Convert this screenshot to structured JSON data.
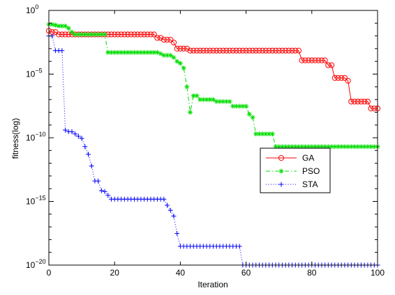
{
  "chart_data": {
    "type": "line",
    "xlabel": "Iteration",
    "ylabel": "fitness(log)",
    "xlim": [
      0,
      100
    ],
    "ylim": [
      1e-20,
      1
    ],
    "yscale": "log",
    "grid": false,
    "legend_position": "inside-right",
    "x_ticks": [
      {
        "value": 0,
        "label": "0"
      },
      {
        "value": 20,
        "label": "20"
      },
      {
        "value": 40,
        "label": "40"
      },
      {
        "value": 60,
        "label": "60"
      },
      {
        "value": 80,
        "label": "80"
      },
      {
        "value": 100,
        "label": "100"
      }
    ],
    "y_ticks": [
      {
        "value": 1,
        "base": "10",
        "exp": "0"
      },
      {
        "value": 1e-05,
        "base": "10",
        "exp": "−5"
      },
      {
        "value": 1e-10,
        "base": "10",
        "exp": "−10"
      },
      {
        "value": 1e-15,
        "base": "10",
        "exp": "−15"
      },
      {
        "value": 1e-20,
        "base": "10",
        "exp": "−20"
      }
    ],
    "series": [
      {
        "name": "GA",
        "color": "#ff0000",
        "marker": "circle",
        "line": "solid",
        "points": [
          [
            0,
            0.025
          ],
          [
            1,
            0.02
          ],
          [
            2,
            0.02
          ],
          [
            3,
            0.013
          ],
          [
            4,
            0.013
          ],
          [
            5,
            0.013
          ],
          [
            6,
            0.013
          ],
          [
            7,
            0.013
          ],
          [
            8,
            0.013
          ],
          [
            9,
            0.013
          ],
          [
            10,
            0.013
          ],
          [
            11,
            0.013
          ],
          [
            12,
            0.013
          ],
          [
            13,
            0.013
          ],
          [
            14,
            0.013
          ],
          [
            15,
            0.013
          ],
          [
            16,
            0.013
          ],
          [
            17,
            0.013
          ],
          [
            18,
            0.013
          ],
          [
            19,
            0.013
          ],
          [
            20,
            0.013
          ],
          [
            21,
            0.013
          ],
          [
            22,
            0.013
          ],
          [
            23,
            0.013
          ],
          [
            24,
            0.013
          ],
          [
            25,
            0.013
          ],
          [
            26,
            0.013
          ],
          [
            27,
            0.013
          ],
          [
            28,
            0.013
          ],
          [
            29,
            0.013
          ],
          [
            30,
            0.013
          ],
          [
            31,
            0.013
          ],
          [
            32,
            0.013
          ],
          [
            33,
            0.007
          ],
          [
            34,
            0.007
          ],
          [
            35,
            0.005
          ],
          [
            36,
            0.005
          ],
          [
            37,
            0.005
          ],
          [
            38,
            0.003
          ],
          [
            39,
            0.001
          ],
          [
            40,
            0.001
          ],
          [
            41,
            0.001
          ],
          [
            42,
            0.001
          ],
          [
            43,
            0.0007
          ],
          [
            44,
            0.0007
          ],
          [
            45,
            0.0007
          ],
          [
            46,
            0.0007
          ],
          [
            47,
            0.0007
          ],
          [
            48,
            0.0007
          ],
          [
            49,
            0.0007
          ],
          [
            50,
            0.0007
          ],
          [
            51,
            0.0007
          ],
          [
            52,
            0.0007
          ],
          [
            53,
            0.0007
          ],
          [
            54,
            0.0007
          ],
          [
            55,
            0.0007
          ],
          [
            56,
            0.0007
          ],
          [
            57,
            0.0007
          ],
          [
            58,
            0.0007
          ],
          [
            59,
            0.0007
          ],
          [
            60,
            0.0007
          ],
          [
            61,
            0.0007
          ],
          [
            62,
            0.0007
          ],
          [
            63,
            0.0007
          ],
          [
            64,
            0.0007
          ],
          [
            65,
            0.0007
          ],
          [
            66,
            0.0007
          ],
          [
            67,
            0.0007
          ],
          [
            68,
            0.0007
          ],
          [
            69,
            0.0007
          ],
          [
            70,
            0.0007
          ],
          [
            71,
            0.0007
          ],
          [
            72,
            0.0007
          ],
          [
            73,
            0.0007
          ],
          [
            74,
            0.0007
          ],
          [
            75,
            0.0007
          ],
          [
            76,
            0.0007
          ],
          [
            77,
            0.00012
          ],
          [
            78,
            0.00012
          ],
          [
            79,
            0.00012
          ],
          [
            80,
            0.00012
          ],
          [
            81,
            0.00012
          ],
          [
            82,
            0.00012
          ],
          [
            83,
            0.00012
          ],
          [
            84,
            0.00012
          ],
          [
            85,
            5e-05
          ],
          [
            86,
            5e-05
          ],
          [
            87,
            5e-06
          ],
          [
            88,
            5e-06
          ],
          [
            89,
            5e-06
          ],
          [
            90,
            5e-06
          ],
          [
            91,
            3e-06
          ],
          [
            92,
            7e-08
          ],
          [
            93,
            7e-08
          ],
          [
            94,
            7e-08
          ],
          [
            95,
            7e-08
          ],
          [
            96,
            7e-08
          ],
          [
            97,
            7e-08
          ],
          [
            98,
            2e-08
          ],
          [
            99,
            2e-08
          ],
          [
            100,
            2e-08
          ]
        ]
      },
      {
        "name": "PSO",
        "color": "#00dd00",
        "marker": "asterisk",
        "line": "dashdot",
        "points": [
          [
            0,
            0.08
          ],
          [
            1,
            0.08
          ],
          [
            2,
            0.07
          ],
          [
            3,
            0.06
          ],
          [
            4,
            0.06
          ],
          [
            5,
            0.06
          ],
          [
            6,
            0.04
          ],
          [
            7,
            0.02
          ],
          [
            8,
            0.013
          ],
          [
            9,
            0.013
          ],
          [
            10,
            0.013
          ],
          [
            11,
            0.013
          ],
          [
            12,
            0.013
          ],
          [
            13,
            0.013
          ],
          [
            14,
            0.013
          ],
          [
            15,
            0.013
          ],
          [
            16,
            0.013
          ],
          [
            17,
            0.013
          ],
          [
            18,
            0.0005
          ],
          [
            19,
            0.0005
          ],
          [
            20,
            0.0005
          ],
          [
            21,
            0.0005
          ],
          [
            22,
            0.0005
          ],
          [
            23,
            0.0005
          ],
          [
            24,
            0.0005
          ],
          [
            25,
            0.0005
          ],
          [
            26,
            0.0005
          ],
          [
            27,
            0.0005
          ],
          [
            28,
            0.0005
          ],
          [
            29,
            0.0005
          ],
          [
            30,
            0.0005
          ],
          [
            31,
            0.0005
          ],
          [
            32,
            0.0005
          ],
          [
            33,
            0.0005
          ],
          [
            34,
            0.0004
          ],
          [
            35,
            0.0003
          ],
          [
            36,
            0.0003
          ],
          [
            37,
            0.0003
          ],
          [
            38,
            0.0002
          ],
          [
            39,
            0.0001
          ],
          [
            40,
            7e-05
          ],
          [
            41,
            3e-05
          ],
          [
            42,
            1e-06
          ],
          [
            43,
            1e-08
          ],
          [
            44,
            2e-07
          ],
          [
            45,
            2e-07
          ],
          [
            46,
            1e-07
          ],
          [
            47,
            1e-07
          ],
          [
            48,
            1e-07
          ],
          [
            49,
            1e-07
          ],
          [
            50,
            1e-07
          ],
          [
            51,
            7e-08
          ],
          [
            52,
            7e-08
          ],
          [
            53,
            7e-08
          ],
          [
            54,
            7e-08
          ],
          [
            55,
            7e-08
          ],
          [
            56,
            3e-08
          ],
          [
            57,
            3e-08
          ],
          [
            58,
            3e-08
          ],
          [
            59,
            3e-08
          ],
          [
            60,
            3e-08
          ],
          [
            61,
            7e-09
          ],
          [
            62,
            4e-09
          ],
          [
            63,
            2e-10
          ],
          [
            64,
            2e-10
          ],
          [
            65,
            2e-10
          ],
          [
            66,
            2e-10
          ],
          [
            67,
            2e-10
          ],
          [
            68,
            2e-10
          ],
          [
            69,
            2e-11
          ],
          [
            70,
            2e-11
          ],
          [
            71,
            2e-11
          ],
          [
            72,
            2e-11
          ],
          [
            73,
            2e-11
          ],
          [
            74,
            2e-11
          ],
          [
            75,
            2e-11
          ],
          [
            76,
            2e-11
          ],
          [
            77,
            2e-11
          ],
          [
            78,
            2e-11
          ],
          [
            79,
            2e-11
          ],
          [
            80,
            2e-11
          ],
          [
            81,
            2e-11
          ],
          [
            82,
            2e-11
          ],
          [
            83,
            2e-11
          ],
          [
            84,
            2e-11
          ],
          [
            85,
            2e-11
          ],
          [
            86,
            2e-11
          ],
          [
            87,
            2e-11
          ],
          [
            88,
            2e-11
          ],
          [
            89,
            2e-11
          ],
          [
            90,
            2e-11
          ],
          [
            91,
            2e-11
          ],
          [
            92,
            2e-11
          ],
          [
            93,
            2e-11
          ],
          [
            94,
            2e-11
          ],
          [
            95,
            2e-11
          ],
          [
            96,
            2e-11
          ],
          [
            97,
            2e-11
          ],
          [
            98,
            2e-11
          ],
          [
            99,
            2e-11
          ],
          [
            100,
            2e-11
          ]
        ]
      },
      {
        "name": "STA",
        "color": "#0000ff",
        "marker": "plus",
        "line": "dotted",
        "points": [
          [
            0,
            0.01
          ],
          [
            1,
            0.01
          ],
          [
            2,
            0.0007
          ],
          [
            3,
            0.0007
          ],
          [
            4,
            0.0007
          ],
          [
            5,
            4e-10
          ],
          [
            6,
            3e-10
          ],
          [
            7,
            3e-10
          ],
          [
            8,
            2e-10
          ],
          [
            9,
            1.3e-10
          ],
          [
            10,
            9e-11
          ],
          [
            11,
            2e-11
          ],
          [
            12,
            5e-12
          ],
          [
            13,
            6e-13
          ],
          [
            14,
            4e-14
          ],
          [
            15,
            4e-14
          ],
          [
            16,
            7e-15
          ],
          [
            17,
            6e-15
          ],
          [
            18,
            3e-15
          ],
          [
            19,
            1.5e-15
          ],
          [
            20,
            1.5e-15
          ],
          [
            21,
            1.5e-15
          ],
          [
            22,
            1.5e-15
          ],
          [
            23,
            1.5e-15
          ],
          [
            24,
            1.5e-15
          ],
          [
            25,
            1.5e-15
          ],
          [
            26,
            1.5e-15
          ],
          [
            27,
            1.5e-15
          ],
          [
            28,
            1.5e-15
          ],
          [
            29,
            1.5e-15
          ],
          [
            30,
            1.5e-15
          ],
          [
            31,
            1.5e-15
          ],
          [
            32,
            1.5e-15
          ],
          [
            33,
            1.5e-15
          ],
          [
            34,
            1.5e-15
          ],
          [
            35,
            1.5e-15
          ],
          [
            36,
            5e-16
          ],
          [
            37,
            2e-16
          ],
          [
            38,
            7e-17
          ],
          [
            39,
            3e-18
          ],
          [
            40,
            3e-19
          ],
          [
            41,
            3e-19
          ],
          [
            42,
            3e-19
          ],
          [
            43,
            3e-19
          ],
          [
            44,
            3e-19
          ],
          [
            45,
            3e-19
          ],
          [
            46,
            3e-19
          ],
          [
            47,
            3e-19
          ],
          [
            48,
            3e-19
          ],
          [
            49,
            3e-19
          ],
          [
            50,
            3e-19
          ],
          [
            51,
            3e-19
          ],
          [
            52,
            3e-19
          ],
          [
            53,
            3e-19
          ],
          [
            54,
            3e-19
          ],
          [
            55,
            3e-19
          ],
          [
            56,
            3e-19
          ],
          [
            57,
            3e-19
          ],
          [
            58,
            3e-19
          ],
          [
            59,
            3.5e-21
          ],
          [
            60,
            3.5e-21
          ],
          [
            61,
            3.5e-21
          ],
          [
            62,
            3.5e-21
          ],
          [
            63,
            3.5e-21
          ],
          [
            64,
            3.5e-21
          ],
          [
            65,
            3.5e-21
          ],
          [
            66,
            3.5e-21
          ],
          [
            67,
            3.5e-21
          ],
          [
            68,
            3.5e-21
          ],
          [
            69,
            3.5e-21
          ],
          [
            70,
            3.5e-21
          ],
          [
            71,
            3.5e-21
          ],
          [
            72,
            3.5e-21
          ],
          [
            73,
            3.5e-21
          ],
          [
            74,
            3.5e-21
          ],
          [
            75,
            3.5e-21
          ],
          [
            76,
            3.5e-21
          ],
          [
            77,
            3.5e-21
          ],
          [
            78,
            3.5e-21
          ],
          [
            79,
            3.5e-21
          ],
          [
            80,
            3.5e-21
          ],
          [
            81,
            3.5e-21
          ],
          [
            82,
            3.5e-21
          ],
          [
            83,
            3.5e-21
          ],
          [
            84,
            3.5e-21
          ],
          [
            85,
            3.5e-21
          ],
          [
            86,
            3.5e-21
          ],
          [
            87,
            3.5e-21
          ],
          [
            88,
            3.5e-21
          ],
          [
            89,
            3.5e-21
          ],
          [
            90,
            3.5e-21
          ],
          [
            91,
            3.5e-21
          ],
          [
            92,
            3.5e-21
          ],
          [
            93,
            3.5e-21
          ],
          [
            94,
            3.5e-21
          ],
          [
            95,
            3.5e-21
          ],
          [
            96,
            3.5e-21
          ],
          [
            97,
            3.5e-21
          ],
          [
            98,
            3.5e-21
          ],
          [
            99,
            3.5e-21
          ],
          [
            100,
            3.5e-21
          ]
        ]
      }
    ]
  }
}
